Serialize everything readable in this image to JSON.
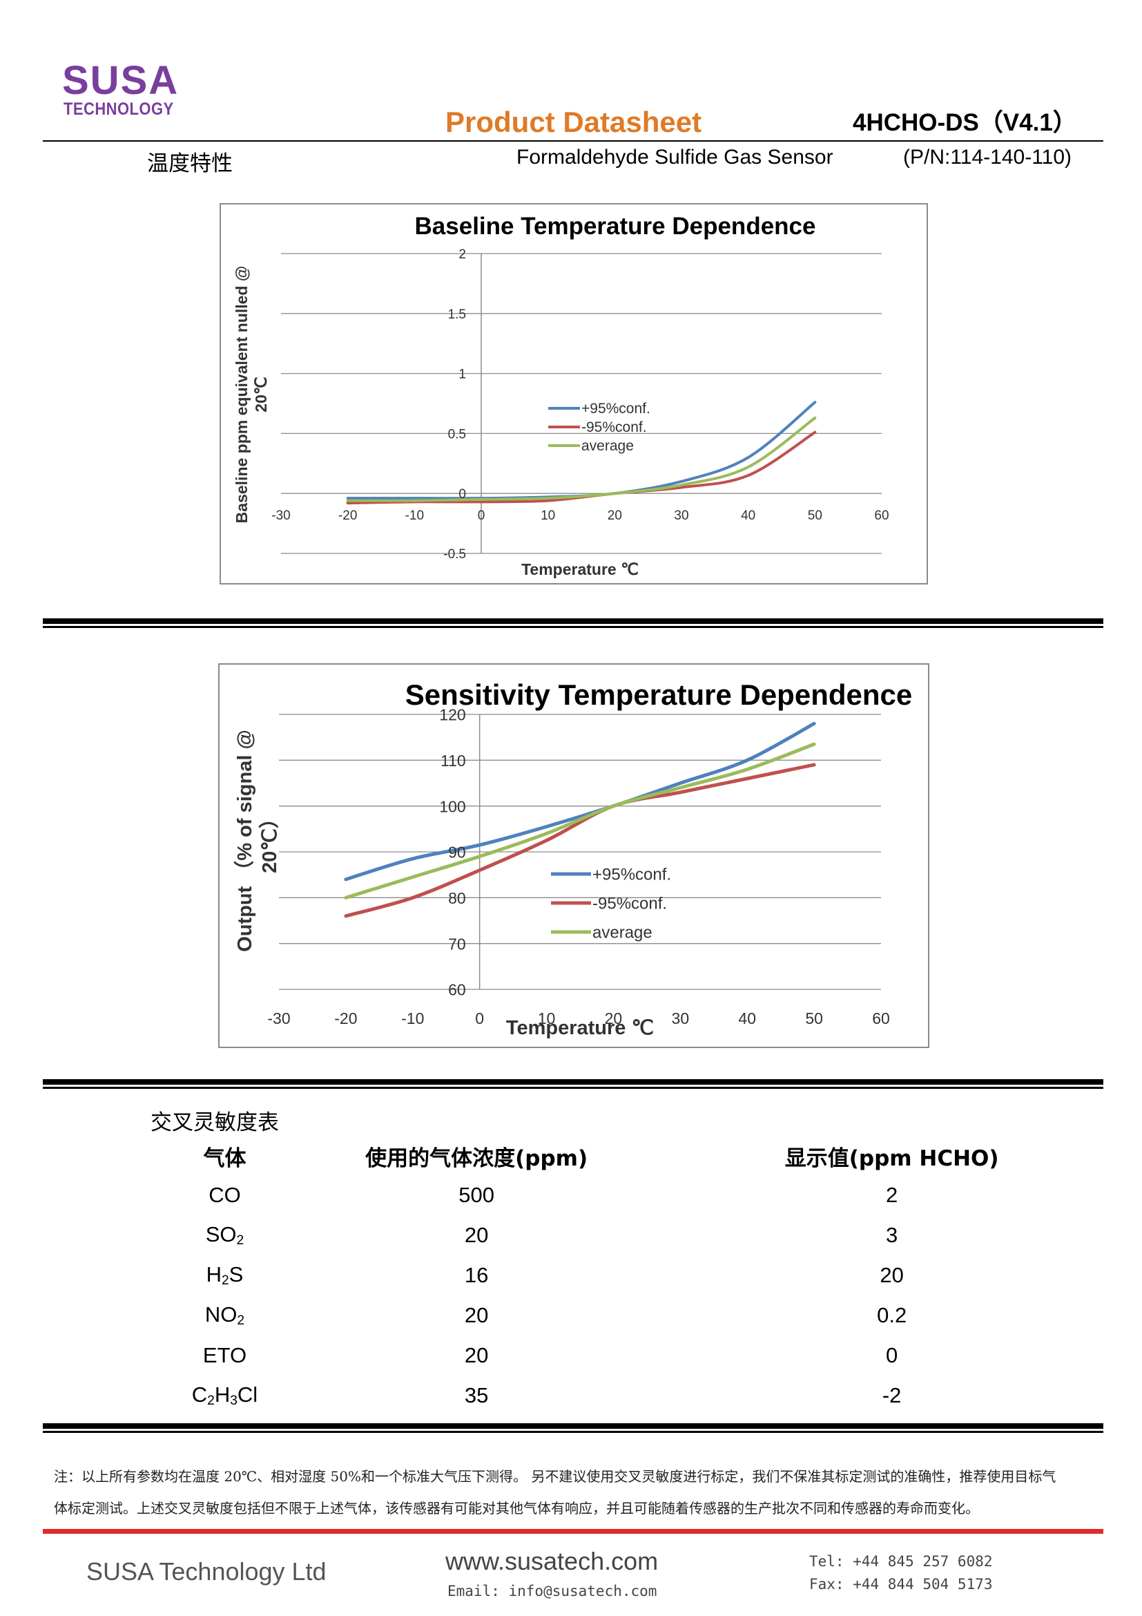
{
  "header": {
    "logo_main": "SUSA",
    "logo_sub": "TECHNOLOGY",
    "title": "Product Datasheet",
    "code": "4HCHO-DS（V4.1）",
    "subtitle": "Formaldehyde Sulfide Gas Sensor",
    "part_number": "(P/N:114-140-110)",
    "section_title": "温度特性"
  },
  "colors": {
    "series_plus": "#4f81bd",
    "series_minus": "#c0504d",
    "series_avg": "#9bbb59",
    "title_orange": "#e07a26",
    "logo_purple": "#7a3e9d",
    "footer_red": "#e3292b"
  },
  "chart_data": [
    {
      "type": "line",
      "title": "Baseline Temperature Dependence",
      "xlabel": "Temperature ℃",
      "ylabel_line1": "Baseline ppm equivalent nulled @",
      "ylabel_line2": "20℃",
      "xlim": [
        -30,
        60
      ],
      "ylim": [
        -0.5,
        2
      ],
      "x_ticks": [
        "-30",
        "-20",
        "-10",
        "0",
        "10",
        "20",
        "30",
        "40",
        "50",
        "60"
      ],
      "y_ticks": [
        "-0.5",
        "0",
        "0.5",
        "1",
        "1.5",
        "2"
      ],
      "legend_position": "center",
      "series": [
        {
          "name": "+95%conf.",
          "x": [
            -20,
            -10,
            0,
            10,
            20,
            30,
            40,
            50
          ],
          "values": [
            -0.04,
            -0.04,
            -0.04,
            -0.03,
            0,
            0.1,
            0.3,
            0.76
          ]
        },
        {
          "name": "-95%conf.",
          "x": [
            -20,
            -10,
            0,
            10,
            20,
            30,
            40,
            50
          ],
          "values": [
            -0.08,
            -0.07,
            -0.07,
            -0.06,
            0,
            0.05,
            0.15,
            0.51
          ]
        },
        {
          "name": "average",
          "x": [
            -20,
            -10,
            0,
            10,
            20,
            30,
            40,
            50
          ],
          "values": [
            -0.06,
            -0.06,
            -0.05,
            -0.04,
            0,
            0.07,
            0.22,
            0.63
          ]
        }
      ]
    },
    {
      "type": "line",
      "title": "Sensitivity Temperature Dependence",
      "xlabel": "Temperature ℃",
      "ylabel_line1": "Output （% of signal @",
      "ylabel_line2": "20℃）",
      "xlim": [
        -30,
        60
      ],
      "ylim": [
        60,
        120
      ],
      "x_ticks": [
        "-30",
        "-20",
        "-10",
        "0",
        "10",
        "20",
        "30",
        "40",
        "50",
        "60"
      ],
      "y_ticks": [
        "60",
        "70",
        "80",
        "90",
        "100",
        "110",
        "120"
      ],
      "legend_position": "center-right",
      "series": [
        {
          "name": "+95%conf.",
          "x": [
            -20,
            -10,
            0,
            10,
            20,
            30,
            40,
            50
          ],
          "values": [
            84,
            88.5,
            91.5,
            95.5,
            100,
            105,
            110,
            118
          ]
        },
        {
          "name": "-95%conf.",
          "x": [
            -20,
            -10,
            0,
            10,
            20,
            30,
            40,
            50
          ],
          "values": [
            76,
            80,
            86,
            92.5,
            100,
            103,
            106,
            109
          ]
        },
        {
          "name": "average",
          "x": [
            -20,
            -10,
            0,
            10,
            20,
            30,
            40,
            50
          ],
          "values": [
            80,
            84.5,
            89,
            94,
            100,
            104,
            108,
            113.5
          ]
        }
      ]
    }
  ],
  "table": {
    "title": "交叉灵敏度表",
    "headers": [
      "气体",
      "使用的气体浓度(ppm)",
      "显示值(ppm HCHO)"
    ],
    "rows": [
      {
        "gas_prefix": "CO",
        "gas_sub": "",
        "gas_suffix": "",
        "gas_sub2": "",
        "gas_suffix2": "",
        "concentration": "500",
        "display": "2"
      },
      {
        "gas_prefix": "SO",
        "gas_sub": "2",
        "gas_suffix": "",
        "gas_sub2": "",
        "gas_suffix2": "",
        "concentration": "20",
        "display": "3"
      },
      {
        "gas_prefix": "H",
        "gas_sub": "2",
        "gas_suffix": "S",
        "gas_sub2": "",
        "gas_suffix2": "",
        "concentration": "16",
        "display": "20"
      },
      {
        "gas_prefix": "NO",
        "gas_sub": "2",
        "gas_suffix": "",
        "gas_sub2": "",
        "gas_suffix2": "",
        "concentration": "20",
        "display": "0.2"
      },
      {
        "gas_prefix": "ETO",
        "gas_sub": "",
        "gas_suffix": "",
        "gas_sub2": "",
        "gas_suffix2": "",
        "concentration": "20",
        "display": "0"
      },
      {
        "gas_prefix": "C",
        "gas_sub": "2",
        "gas_suffix": "H",
        "gas_sub2": "3",
        "gas_suffix2": "Cl",
        "concentration": "35",
        "display": "-2"
      }
    ]
  },
  "notes": {
    "line1": "注：以上所有参数均在温度 20℃、相对湿度 50%和一个标准大气压下测得。 另不建议使用交叉灵敏度进行标定，我们不保准其标定测试的准确性，推荐使用目标气",
    "line2": "体标定测试。上述交叉灵敏度包括但不限于上述气体，该传感器有可能对其他气体有响应，并且可能随着传感器的生产批次不同和传感器的寿命而变化。"
  },
  "footer": {
    "company": "SUSA Technology Ltd",
    "website": "www.susatech.com",
    "email": "Email: info@susatech.com",
    "tel": "Tel: +44 845 257 6082",
    "fax": "Fax: +44 844 504 5173"
  }
}
